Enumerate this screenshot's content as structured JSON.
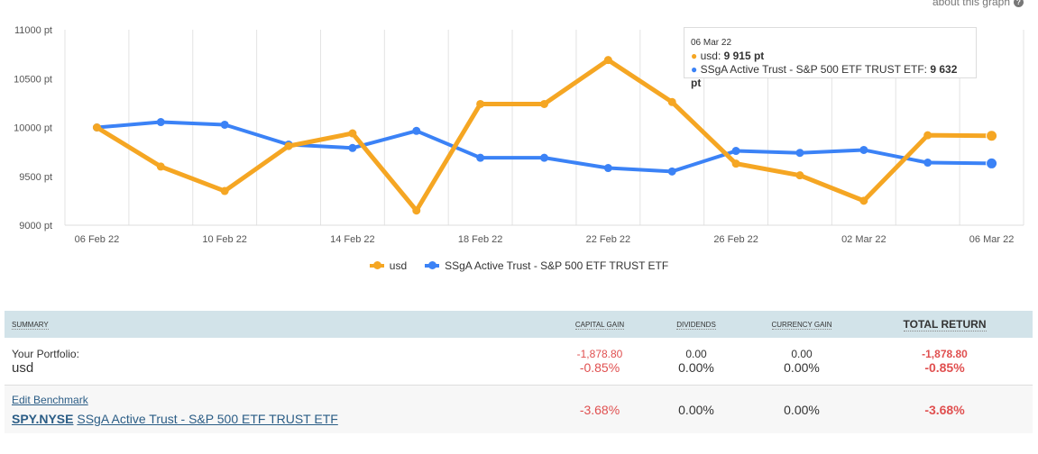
{
  "about": {
    "label": "about this graph",
    "icon": "question-icon"
  },
  "colors": {
    "usd": "#f5a623",
    "spy": "#3b82f6"
  },
  "chart_data": {
    "type": "line",
    "x": [
      "06 Feb 22",
      "08 Feb 22",
      "10 Feb 22",
      "12 Feb 22",
      "14 Feb 22",
      "16 Feb 22",
      "18 Feb 22",
      "20 Feb 22",
      "22 Feb 22",
      "24 Feb 22",
      "26 Feb 22",
      "28 Feb 22",
      "02 Mar 22",
      "04 Mar 22",
      "06 Mar 22"
    ],
    "xticks": [
      "06 Feb 22",
      "10 Feb 22",
      "14 Feb 22",
      "18 Feb 22",
      "22 Feb 22",
      "26 Feb 22",
      "02 Mar 22",
      "06 Mar 22"
    ],
    "yticks": [
      "9000 pt",
      "9500 pt",
      "10000 pt",
      "10500 pt",
      "11000 pt"
    ],
    "ylim": [
      9000,
      11000
    ],
    "series": [
      {
        "name": "usd",
        "values": [
          10000,
          9600,
          9350,
          9810,
          9940,
          9150,
          10240,
          10240,
          10690,
          10260,
          9630,
          9510,
          9250,
          9920,
          9915
        ]
      },
      {
        "name": "SSgA Active Trust - S&P 500 ETF TRUST ETF",
        "values": [
          10000,
          10055,
          10028,
          9825,
          9790,
          9965,
          9690,
          9690,
          9585,
          9550,
          9760,
          9740,
          9770,
          9640,
          9632
        ]
      }
    ],
    "legend": "bottom",
    "tooltip": {
      "date": "06 Mar 22",
      "usd_label": "usd: ",
      "usd_value": "9 915 pt",
      "spy_label": "SSgA Active Trust - S&P 500 ETF TRUST ETF: ",
      "spy_value": "9 632 pt"
    }
  },
  "summary": {
    "headers": [
      "Summary",
      "Capital Gain",
      "Dividends",
      "Currency Gain",
      "Total Return"
    ],
    "portfolio": {
      "label": "Your Portfolio:",
      "name": "usd",
      "capital_gain": "-1,878.80",
      "capital_gain_pct": "-0.85%",
      "dividends": "0.00",
      "dividends_pct": "0.00%",
      "currency": "0.00",
      "currency_pct": "0.00%",
      "total": "-1,878.80",
      "total_pct": "-0.85%"
    },
    "benchmark": {
      "edit": "Edit Benchmark",
      "ticker": "SPY.NYSE",
      "name": "SSgA Active Trust - S&P 500 ETF TRUST ETF",
      "capital_gain_pct": "-3.68%",
      "dividends_pct": "0.00%",
      "currency_pct": "0.00%",
      "total_pct": "-3.68%"
    }
  }
}
